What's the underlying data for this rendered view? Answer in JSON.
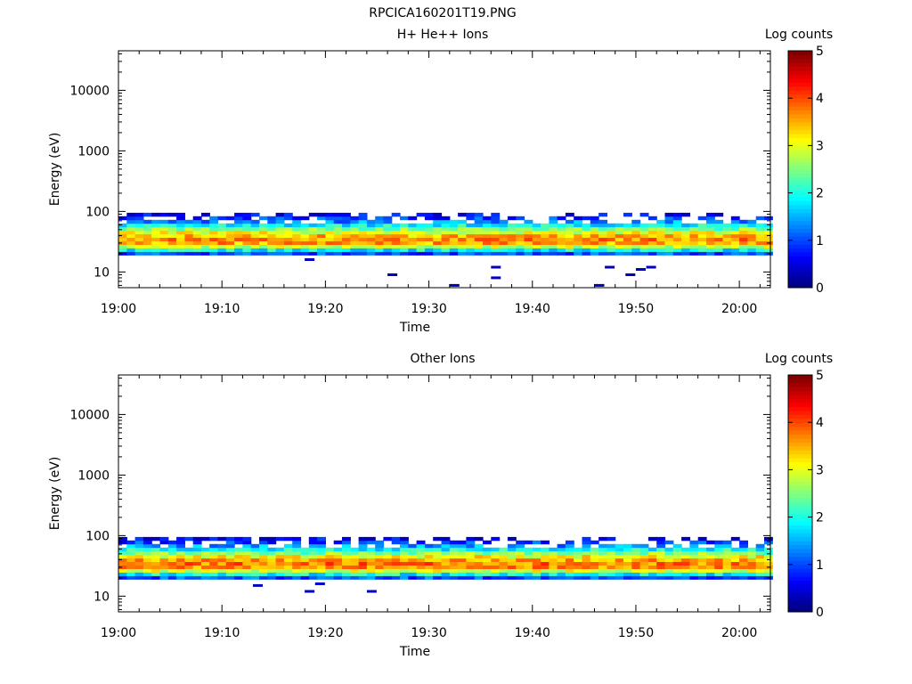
{
  "page_title": "RPCICA160201T19.PNG",
  "chart_data": [
    {
      "type": "heatmap",
      "title": "H+ He++ Ions",
      "xlabel": "Time",
      "ylabel": "Energy (eV)",
      "x_ticks": [
        "19:00",
        "19:10",
        "19:20",
        "19:30",
        "19:40",
        "19:50",
        "20:00"
      ],
      "xlim": [
        "19:00",
        "20:03"
      ],
      "y_scale": "log",
      "y_ticks": [
        10,
        100,
        1000,
        10000
      ],
      "y_tick_labels": [
        "10",
        "100",
        "1000",
        "10000"
      ],
      "ylim": [
        5.5,
        45000
      ],
      "colorbar": {
        "label": "Log counts",
        "range": [
          0,
          5
        ],
        "ticks": [
          "0",
          "1",
          "2",
          "3",
          "4",
          "5"
        ]
      },
      "band": {
        "energy_range_eV": [
          19,
          95
        ],
        "peak_energy_eV": 33,
        "peak_log_counts": 3.7
      },
      "isolated_points": [
        {
          "time": "19:18",
          "energy": 16,
          "log_counts": 0.3
        },
        {
          "time": "19:26",
          "energy": 9,
          "log_counts": 0.3
        },
        {
          "time": "19:32",
          "energy": 6,
          "log_counts": 0.3
        },
        {
          "time": "19:36",
          "energy": 8,
          "log_counts": 0.3
        },
        {
          "time": "19:36",
          "energy": 12,
          "log_counts": 0.3
        },
        {
          "time": "19:46",
          "energy": 6,
          "log_counts": 0.3
        },
        {
          "time": "19:47",
          "energy": 12,
          "log_counts": 0.3
        },
        {
          "time": "19:49",
          "energy": 9,
          "log_counts": 0.3
        },
        {
          "time": "19:50",
          "energy": 11,
          "log_counts": 0.3
        },
        {
          "time": "19:51",
          "energy": 12,
          "log_counts": 0.3
        }
      ]
    },
    {
      "type": "heatmap",
      "title": "Other Ions",
      "xlabel": "Time",
      "ylabel": "Energy (eV)",
      "x_ticks": [
        "19:00",
        "19:10",
        "19:20",
        "19:30",
        "19:40",
        "19:50",
        "20:00"
      ],
      "xlim": [
        "19:00",
        "20:03"
      ],
      "y_scale": "log",
      "y_ticks": [
        10,
        100,
        1000,
        10000
      ],
      "y_tick_labels": [
        "10",
        "100",
        "1000",
        "10000"
      ],
      "ylim": [
        5.5,
        45000
      ],
      "colorbar": {
        "label": "Log counts",
        "range": [
          0,
          5
        ],
        "ticks": [
          "0",
          "1",
          "2",
          "3",
          "4",
          "5"
        ]
      },
      "band": {
        "energy_range_eV": [
          19,
          95
        ],
        "peak_energy_eV": 33,
        "peak_log_counts": 3.8
      },
      "isolated_points": [
        {
          "time": "19:13",
          "energy": 15,
          "log_counts": 0.3
        },
        {
          "time": "19:18",
          "energy": 12,
          "log_counts": 0.3
        },
        {
          "time": "19:19",
          "energy": 16,
          "log_counts": 0.3
        },
        {
          "time": "19:24",
          "energy": 12,
          "log_counts": 0.3
        }
      ]
    }
  ]
}
